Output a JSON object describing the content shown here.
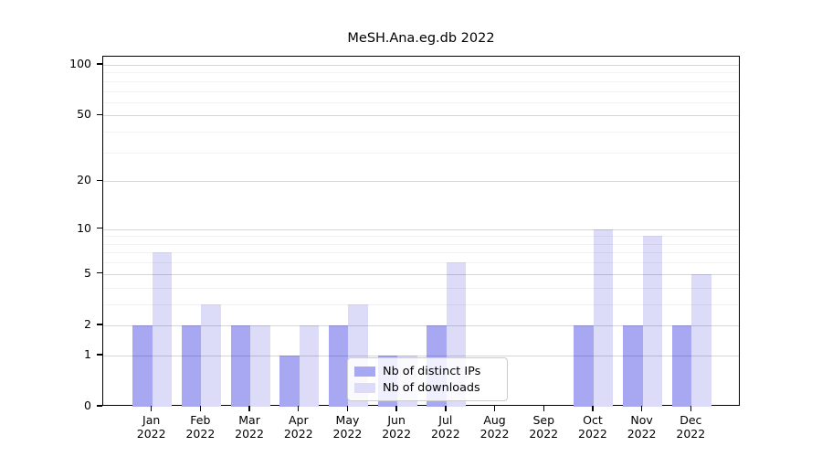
{
  "title": "MeSH.Ana.eg.db 2022",
  "chart_data": {
    "type": "bar",
    "title": "MeSH.Ana.eg.db 2022",
    "categories": [
      "Jan",
      "Feb",
      "Mar",
      "Apr",
      "May",
      "Jun",
      "Jul",
      "Aug",
      "Sep",
      "Oct",
      "Nov",
      "Dec"
    ],
    "category_year": "2022",
    "series": [
      {
        "name": "Nb of distinct IPs",
        "color": "#a8a8f2",
        "values": [
          2,
          2,
          2,
          1,
          2,
          1,
          2,
          0,
          0,
          2,
          2,
          2
        ]
      },
      {
        "name": "Nb of downloads",
        "color": "#dcdcf8",
        "values": [
          7,
          3,
          2,
          2,
          3,
          1,
          6,
          0,
          0,
          10,
          9,
          5
        ]
      }
    ],
    "xlabel": "",
    "ylabel": "",
    "yscale": "log1p",
    "ylim": [
      0,
      113
    ],
    "yticks": [
      0,
      1,
      2,
      5,
      10,
      20,
      50,
      100
    ],
    "yticks_minor": [
      3,
      4,
      6,
      7,
      8,
      9,
      30,
      40,
      60,
      70,
      80,
      90
    ],
    "grid": "on",
    "legend_position": "bottom-center-inside"
  }
}
